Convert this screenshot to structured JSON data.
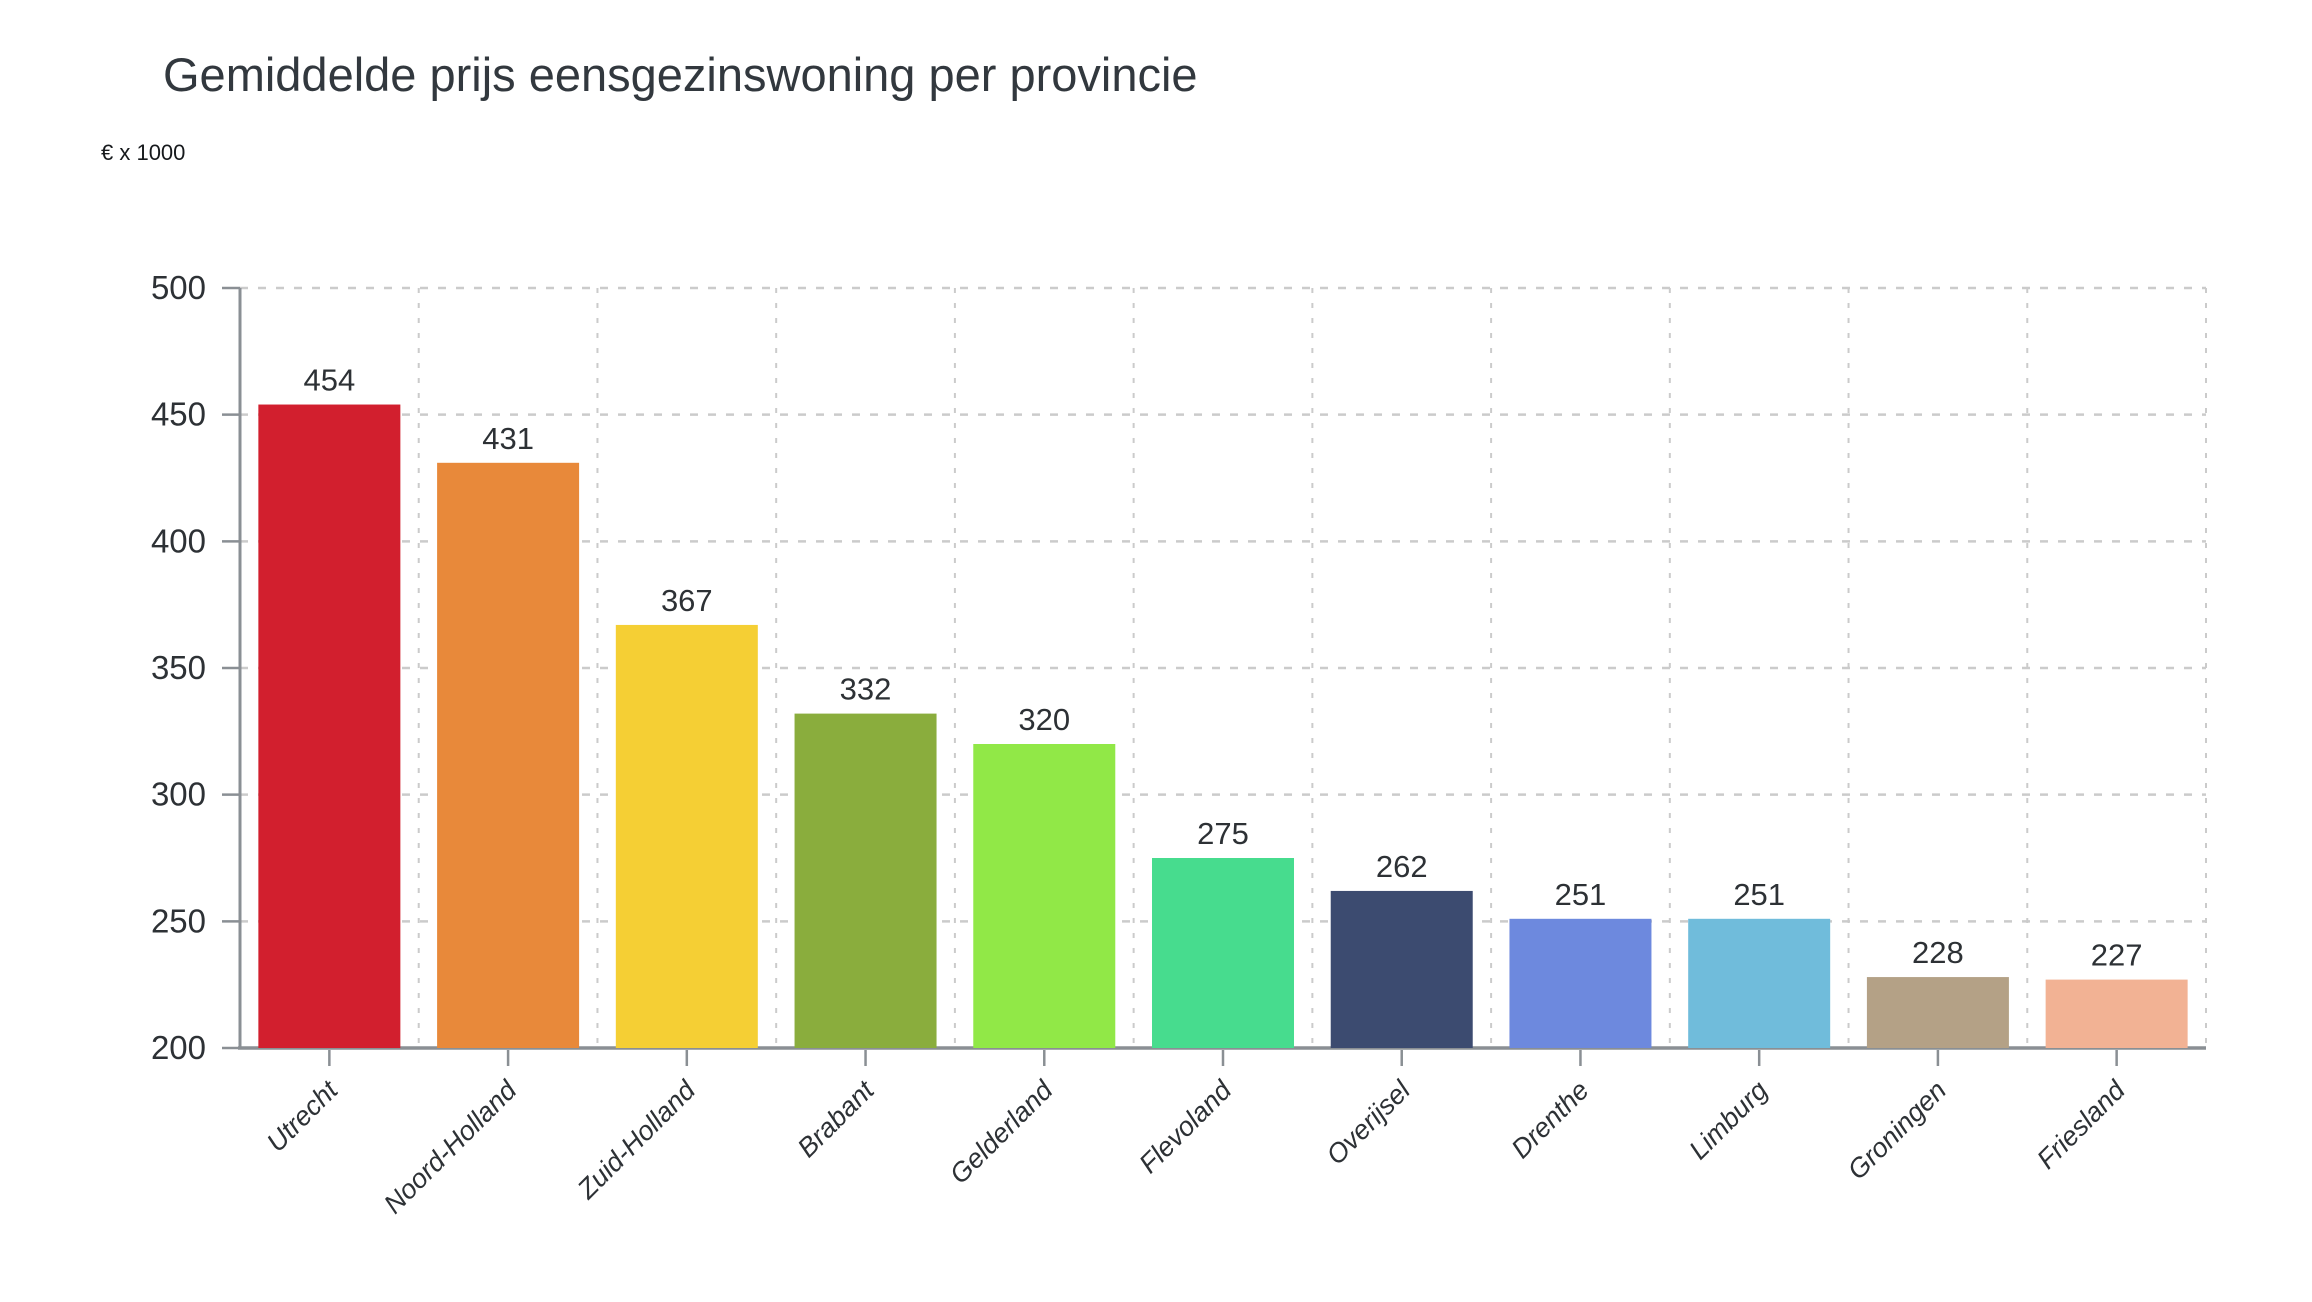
{
  "chart_data": {
    "type": "bar",
    "title": "Gemiddelde prijs eensgezinswoning per provincie",
    "unit_label": "€ x 1000",
    "xlabel": "",
    "ylabel": "€ x 1000",
    "categories": [
      "Utrecht",
      "Noord-Holland",
      "Zuid-Holland",
      "Brabant",
      "Gelderland",
      "Flevoland",
      "Overijsel",
      "Drenthe",
      "Limburg",
      "Groningen",
      "Friesland"
    ],
    "values": [
      454,
      431,
      367,
      332,
      320,
      275,
      262,
      251,
      251,
      228,
      227
    ],
    "bar_colors": [
      "#d21f2e",
      "#e8893a",
      "#f5cf34",
      "#8aad3d",
      "#91e847",
      "#47dc8e",
      "#3c4b70",
      "#6d89de",
      "#70bcdb",
      "#b4a186",
      "#f2b294"
    ],
    "value_labels_shown": true,
    "ylim": [
      200,
      500
    ],
    "yticks": [
      200,
      250,
      300,
      350,
      400,
      450,
      500
    ],
    "grid": "dashed horizontal and vertical",
    "legend": "none"
  },
  "colors": {
    "background": "#ffffff",
    "title_text": "#32383e",
    "tick_text": "#2d3135",
    "value_label_text": "#2d3135",
    "category_label_text": "#2d3135",
    "axis_line": "#8a8f94",
    "grid_line": "#cbcbcb"
  }
}
